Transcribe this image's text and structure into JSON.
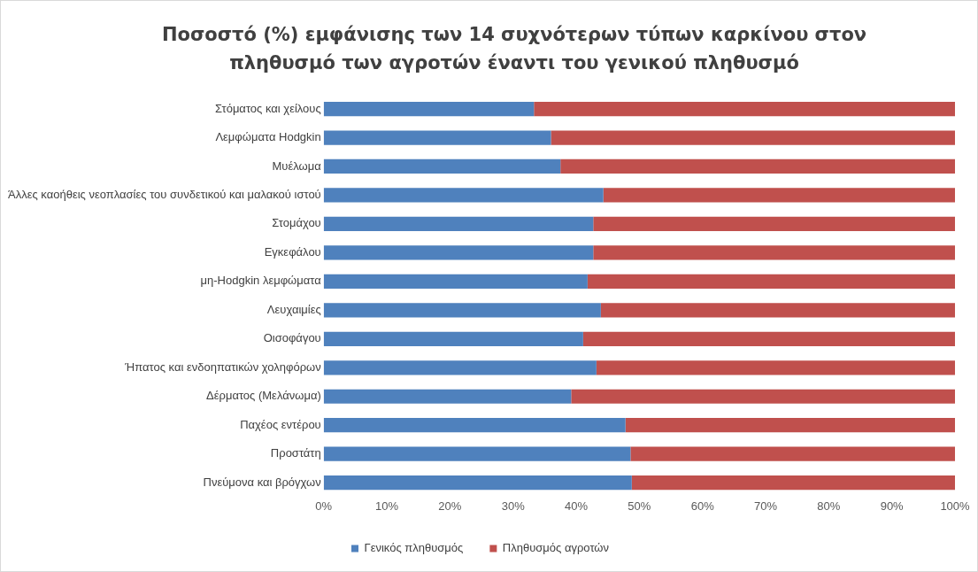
{
  "chart_data": {
    "type": "bar",
    "orientation": "horizontal",
    "stacked": true,
    "title": "Ποσοστό (%) εμφάνισης των 14 συχνότερων τύπων καρκίνου στον πληθυσμό των αγροτών έναντι του γενικού πληθυσμό",
    "categories": [
      "Στόματος και χείλους",
      "Λεμφώματα Hodgkin",
      "Μυέλωμα",
      "Άλλες καοήθεις νεοπλασίες του συνδετικού και μαλακού ιστού",
      "Στομάχου",
      "Εγκεφάλου",
      "μη-Hodgkin λεμφώματα",
      "Λευχαιμίες",
      "Οισοφάγου",
      "Ήπατος και ενδοηπατικών χοληφόρων",
      "Δέρματος (Μελάνωμα)",
      "Παχέος εντέρου",
      "Προστάτη",
      "Πνεύμονα και βρόγχων"
    ],
    "series": [
      {
        "name": "Γενικός πληθυσμός",
        "color": "#4f81bd",
        "values": [
          33.3,
          36,
          37.5,
          44.3,
          42.7,
          42.7,
          41.8,
          43.9,
          41.1,
          43.2,
          39.2,
          47.8,
          48.6,
          48.8
        ]
      },
      {
        "name": "Πληθυσμός αγροτών",
        "color": "#c0504d",
        "values": [
          66.7,
          64,
          62.5,
          55.7,
          57.3,
          57.3,
          58.2,
          56.1,
          58.9,
          56.8,
          60.8,
          52.2,
          51.4,
          51.2
        ]
      }
    ],
    "xlim": [
      0,
      100
    ],
    "xticks": [
      {
        "value": 0,
        "label": "0%"
      },
      {
        "value": 10,
        "label": "10%"
      },
      {
        "value": 20,
        "label": "20%"
      },
      {
        "value": 30,
        "label": "30%"
      },
      {
        "value": 40,
        "label": "40%"
      },
      {
        "value": 50,
        "label": "50%"
      },
      {
        "value": 60,
        "label": "60%"
      },
      {
        "value": 70,
        "label": "70%"
      },
      {
        "value": 80,
        "label": "80%"
      },
      {
        "value": 90,
        "label": "90%"
      },
      {
        "value": 100,
        "label": "100%"
      }
    ],
    "grid": false,
    "legend": "bottom"
  }
}
